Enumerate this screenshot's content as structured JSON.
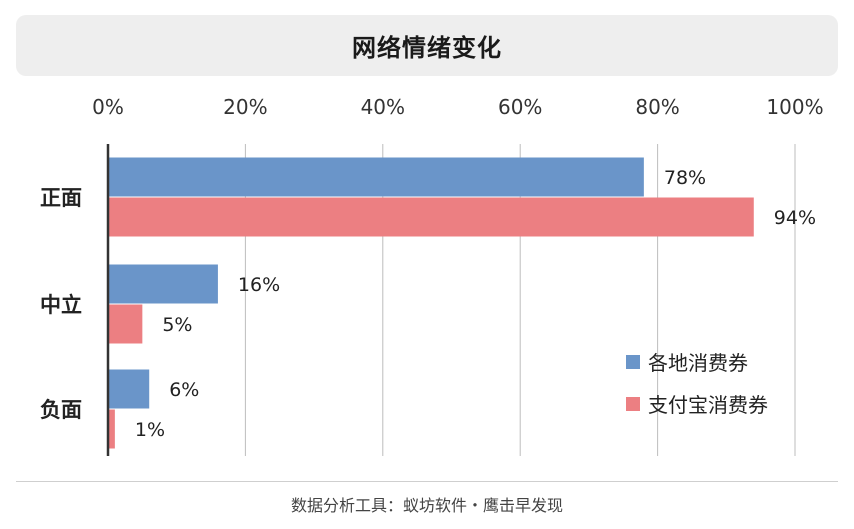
{
  "title": "网络情绪变化",
  "footer": "数据分析工具：蚁坊软件・鹰击早发现",
  "colors": {
    "series1": "#6a95c9",
    "series2": "#ec7f82",
    "grid": "#bdbdbd",
    "axis": "#333333"
  },
  "chart_data": {
    "type": "bar",
    "orientation": "horizontal",
    "categories": [
      "正面",
      "中立",
      "负面"
    ],
    "series": [
      {
        "name": "各地消费券",
        "values": [
          78,
          16,
          6
        ],
        "labels": [
          "78%",
          "16%",
          "6%"
        ]
      },
      {
        "name": "支付宝消费券",
        "values": [
          94,
          5,
          1
        ],
        "labels": [
          "94%",
          "5%",
          "1%"
        ]
      }
    ],
    "xlim": [
      0,
      100
    ],
    "xticks": [
      0,
      20,
      40,
      60,
      80,
      100
    ],
    "xtick_labels": [
      "0%",
      "20%",
      "40%",
      "60%",
      "80%",
      "100%"
    ],
    "xaxis_position": "top",
    "grid": true,
    "legend_position": "bottom-right"
  }
}
